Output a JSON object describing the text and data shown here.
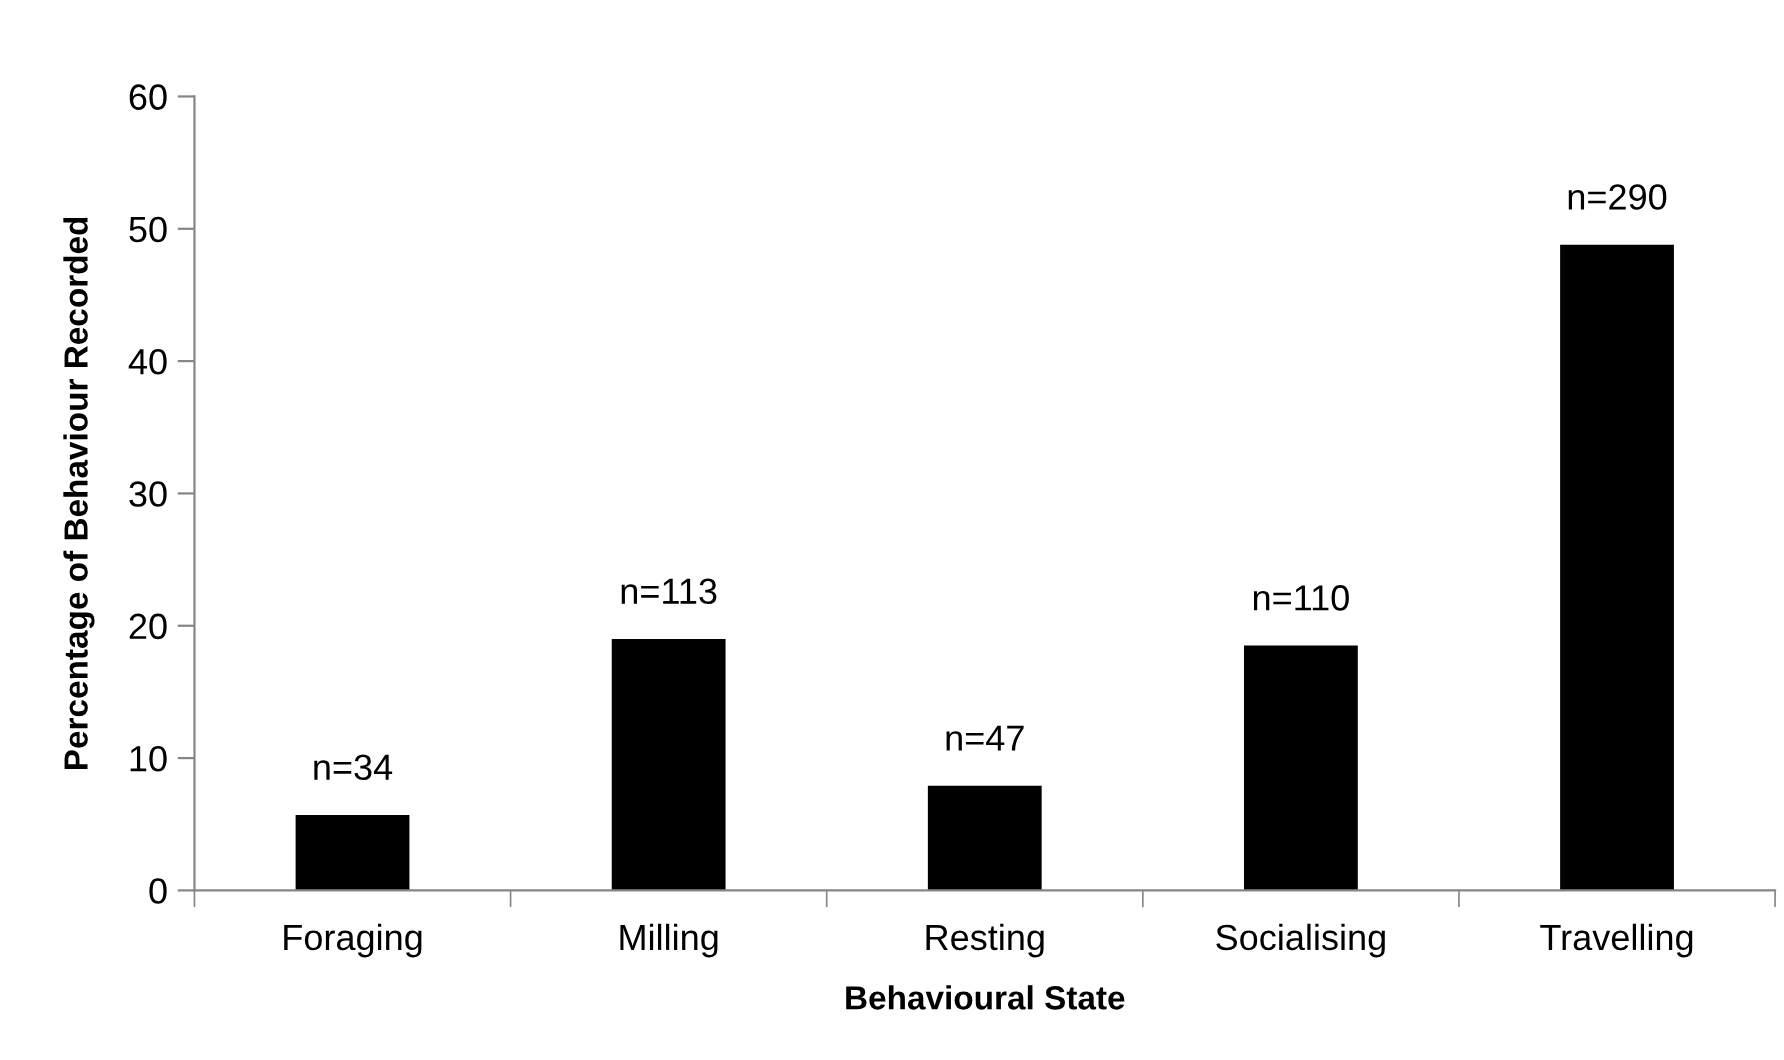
{
  "chart_data": {
    "type": "bar",
    "xlabel": "Behavioural State",
    "ylabel": "Percentage of Behaviour Recorded",
    "categories": [
      "Foraging",
      "Milling",
      "Resting",
      "Socialising",
      "Travelling"
    ],
    "values": [
      5.7,
      19.0,
      7.9,
      18.5,
      48.8
    ],
    "annotations": [
      {
        "text": "n=34",
        "x": "Foraging",
        "y": 5.7
      },
      {
        "text": "n=113",
        "x": "Milling",
        "y": 19.0
      },
      {
        "text": "n=47",
        "x": "Resting",
        "y": 7.9
      },
      {
        "text": "n=110",
        "x": "Socialising",
        "y": 18.5
      },
      {
        "text": "n=290",
        "x": "Travelling",
        "y": 48.8
      }
    ],
    "color": "#000000",
    "ylim": [
      0,
      60
    ],
    "yticks": [
      0,
      10,
      20,
      30,
      40,
      50,
      60
    ],
    "grid": false,
    "legend": false
  }
}
